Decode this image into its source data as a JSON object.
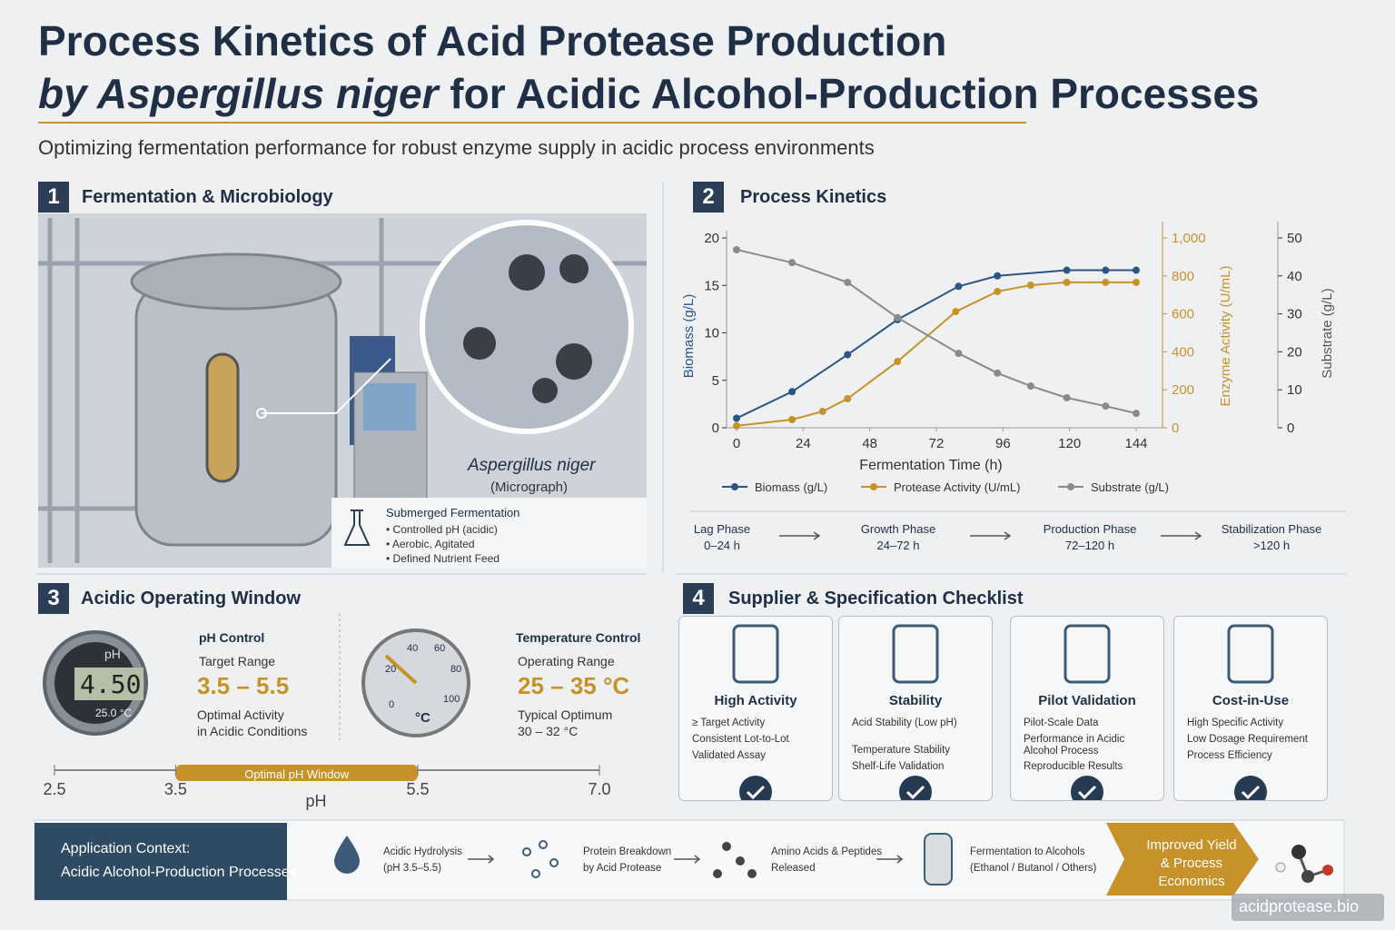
{
  "header": {
    "title_line1": "Process Kinetics of Acid Protease Production",
    "title_italic": "by Aspergillus niger",
    "title_rest": "for Acidic Alcohol-Production Processes",
    "subtitle": "Optimizing fermentation performance for robust enzyme supply in acidic process environments"
  },
  "s1": {
    "number": "1",
    "title": "Fermentation & Microbiology",
    "micrograph_name": "Aspergillus niger",
    "micrograph_note": "(Micrograph)",
    "box_title": "Submerged Fermentation",
    "box_items": [
      "Controlled pH (acidic)",
      "Aerobic, Agitated",
      "Defined Nutrient Feed"
    ]
  },
  "s2": {
    "number": "2",
    "title": "Process Kinetics",
    "phases": [
      {
        "name": "Lag Phase",
        "range": "0–24 h"
      },
      {
        "name": "Growth Phase",
        "range": "24–72 h"
      },
      {
        "name": "Production Phase",
        "range": "72–120 h"
      },
      {
        "name": "Stabilization Phase",
        "range": ">120 h"
      }
    ]
  },
  "chart_data": {
    "type": "line",
    "x_label": "Fermentation Time (h)",
    "y_label": "Biomass (g/L)",
    "y2_label": "Enzyme Activity (U/mL)",
    "y3_label": "Substrate (g/L)",
    "xlim": [
      0,
      144
    ],
    "xticks": [
      0,
      24,
      48,
      72,
      96,
      120,
      144
    ],
    "ylim": [
      0,
      20
    ],
    "yticks": [
      0,
      5,
      10,
      15,
      20
    ],
    "y2lim": [
      0,
      1000
    ],
    "y2ticks": [
      0,
      200,
      400,
      600,
      800,
      {
        "value": 1000,
        "label": "1,000"
      }
    ],
    "y3lim": [
      0,
      50
    ],
    "y3ticks": [
      0,
      10,
      20,
      30,
      40,
      50
    ],
    "grid": false,
    "legend": "bottom",
    "series": [
      {
        "name": "Biomass (g/L)",
        "color": "#2a5585",
        "x": [
          0,
          20,
          40,
          58,
          80,
          94,
          119,
          133,
          144
        ],
        "values": [
          1.0,
          3.8,
          7.7,
          11.4,
          14.9,
          16.0,
          16.6,
          16.6,
          16.6
        ]
      },
      {
        "name": "Protease Activity (U/mL)",
        "color": "#c8922a",
        "axis": "y2",
        "x": [
          0,
          20,
          31,
          40,
          58,
          79,
          94,
          106,
          119,
          133,
          144
        ],
        "values": [
          10,
          43,
          86,
          153,
          349,
          612,
          718,
          751,
          766,
          766,
          766
        ]
      },
      {
        "name": "Substrate (g/L)",
        "color": "#8a8a8a",
        "axis": "y3",
        "x": [
          0,
          20,
          40,
          58,
          80,
          94,
          106,
          119,
          133,
          144
        ],
        "values": [
          46.9,
          43.5,
          38.3,
          29,
          19.6,
          14.4,
          11,
          7.9,
          5.7,
          3.8
        ]
      }
    ]
  },
  "s3": {
    "number": "3",
    "title": "Acidic Operating Window",
    "ph": {
      "gauge_label": "pH",
      "reading": "4.50",
      "temp": "25.0 °C",
      "heading": "pH Control",
      "range_label": "Target Range",
      "range": "3.5 – 5.5",
      "note": [
        "Optimal Activity",
        "in Acidic Conditions"
      ]
    },
    "temp": {
      "dial_ticks": [
        "0",
        "20",
        "40",
        "60",
        "80",
        "100"
      ],
      "unit": "°C",
      "heading": "Temperature Control",
      "range_label": "Operating Range",
      "range": "25 – 35 °C",
      "note_label": "Typical Optimum",
      "note": "30 – 32 °C"
    },
    "scale": {
      "xlim": [
        2.5,
        7.0
      ],
      "ticks": [
        2.5,
        3.5,
        5.5,
        {
          "value": 7.0,
          "label": "7.0"
        }
      ],
      "window": [
        3.5,
        5.5
      ],
      "window_label": "Optimal pH Window",
      "axis_label": "pH"
    }
  },
  "s4": {
    "number": "4",
    "title": "Supplier & Specification Checklist",
    "cards": [
      {
        "title": "High Activity",
        "items": [
          "≥ Target Activity",
          "Consistent Lot-to-Lot",
          "Validated Assay"
        ]
      },
      {
        "title": "Stability",
        "items": [
          "Acid Stability (Low pH)",
          "Temperature Stability",
          "Shelf-Life Validation"
        ]
      },
      {
        "title": "Pilot Validation",
        "items": [
          "Pilot-Scale Data",
          "Performance in Acidic Alcohol Process",
          "Reproducible Results"
        ]
      },
      {
        "title": "Cost-in-Use",
        "items": [
          "High Specific Activity",
          "Low Dosage Requirement",
          "Process Efficiency"
        ]
      }
    ]
  },
  "footer": {
    "context": [
      "Application Context:",
      "Acidic Alcohol-Production Processes"
    ],
    "steps": [
      [
        "Acidic Hydrolysis",
        "(pH 3.5–5.5)"
      ],
      [
        "Protein Breakdown",
        "by Acid Protease"
      ],
      [
        "Amino Acids & Peptides",
        "Released"
      ],
      [
        "Fermentation to Alcohols",
        "(Ethanol / Butanol / Others)"
      ]
    ],
    "result": [
      "Improved Yield",
      "& Process",
      "Economics"
    ],
    "watermark": "acidprotease.bio"
  }
}
